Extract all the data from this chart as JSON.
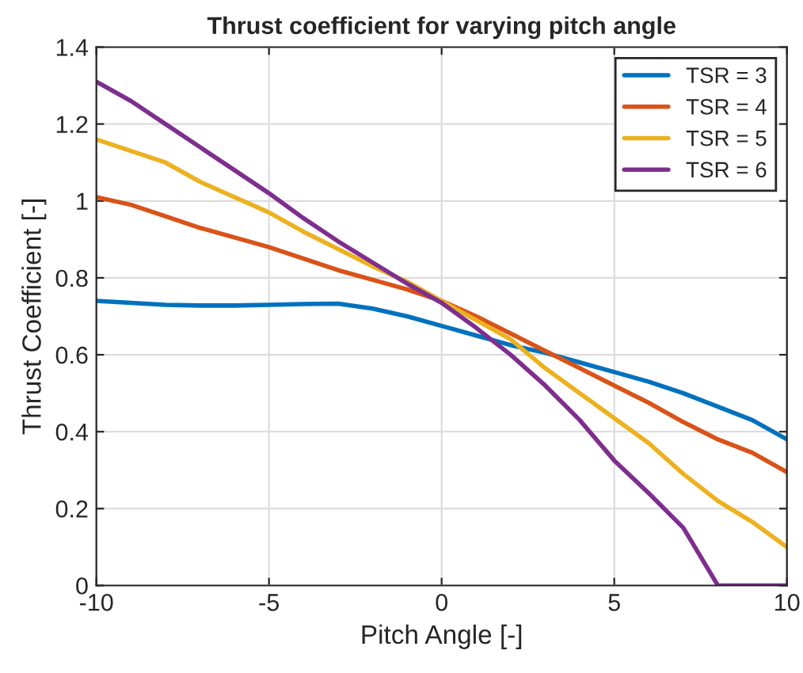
{
  "chart_data": {
    "type": "line",
    "title": "Thrust coefficient for varying pitch angle",
    "xlabel": "Pitch Angle [-]",
    "ylabel": "Thrust Coefficient [-]",
    "x": [
      -10,
      -9,
      -8,
      -7,
      -6,
      -5,
      -4,
      -3,
      -2,
      -1,
      0,
      1,
      2,
      3,
      4,
      5,
      6,
      7,
      8,
      9,
      10
    ],
    "series": [
      {
        "name": "TSR = 3",
        "color": "#0072bd",
        "values": [
          0.74,
          0.735,
          0.73,
          0.728,
          0.728,
          0.73,
          0.732,
          0.733,
          0.72,
          0.7,
          0.675,
          0.65,
          0.625,
          0.605,
          0.58,
          0.555,
          0.53,
          0.5,
          0.465,
          0.43,
          0.38
        ]
      },
      {
        "name": "TSR = 4",
        "color": "#d95319",
        "values": [
          1.01,
          0.99,
          0.96,
          0.93,
          0.905,
          0.88,
          0.85,
          0.82,
          0.795,
          0.77,
          0.74,
          0.7,
          0.655,
          0.61,
          0.565,
          0.52,
          0.475,
          0.425,
          0.38,
          0.345,
          0.295
        ]
      },
      {
        "name": "TSR = 5",
        "color": "#edb120",
        "values": [
          1.16,
          1.13,
          1.1,
          1.05,
          1.01,
          0.97,
          0.92,
          0.875,
          0.83,
          0.79,
          0.74,
          0.69,
          0.64,
          0.565,
          0.5,
          0.435,
          0.37,
          0.29,
          0.22,
          0.165,
          0.1
        ]
      },
      {
        "name": "TSR = 6",
        "color": "#7e2f8e",
        "values": [
          1.31,
          1.26,
          1.2,
          1.14,
          1.08,
          1.02,
          0.955,
          0.895,
          0.84,
          0.785,
          0.735,
          0.67,
          0.6,
          0.52,
          0.43,
          0.325,
          0.24,
          0.15,
          0,
          0,
          0
        ]
      }
    ],
    "xlim": [
      -10,
      10
    ],
    "xticks": [
      -10,
      -5,
      0,
      5,
      10
    ],
    "ylim": [
      0,
      1.4
    ],
    "yticks": [
      0,
      0.2,
      0.4,
      0.6,
      0.8,
      1,
      1.2,
      1.4
    ],
    "grid": true,
    "legend": "top right",
    "line_style": "solid",
    "marker": "none"
  }
}
